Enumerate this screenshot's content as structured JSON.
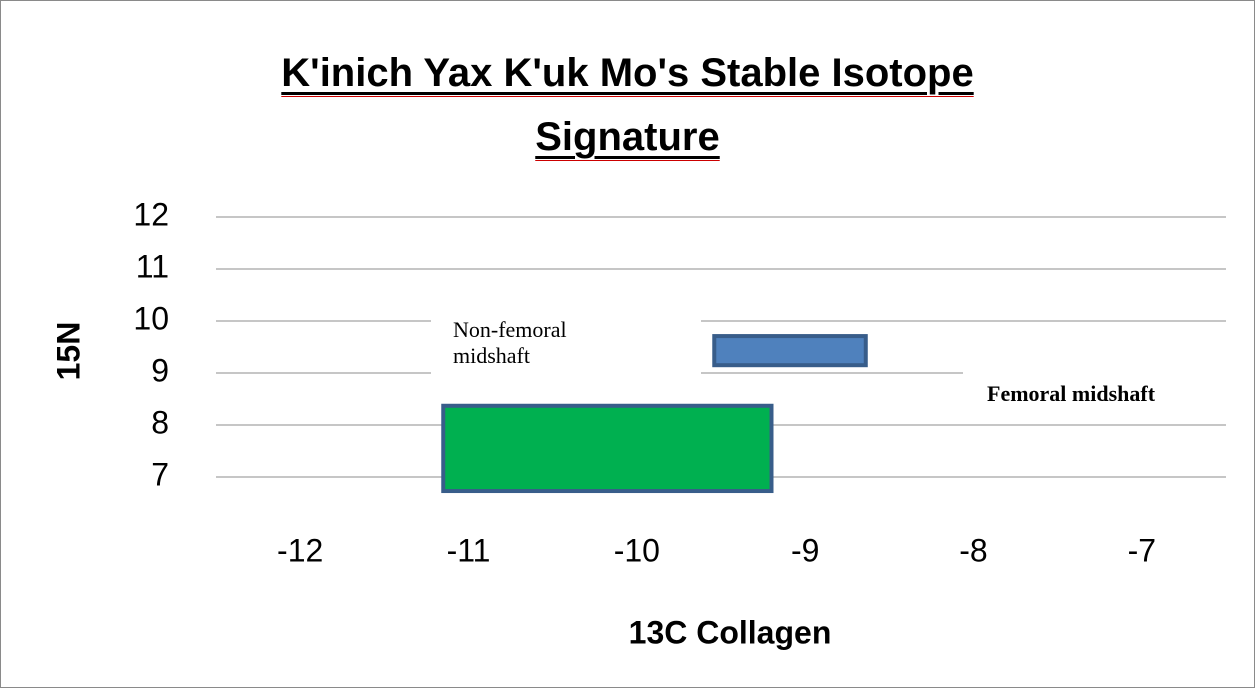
{
  "chart_data": {
    "type": "range-box",
    "title": [
      "K'inich Yax K'uk Mo's Stable Isotope",
      "Signature"
    ],
    "x_label": "13C Collagen",
    "y_label": "15N",
    "xlim": [
      -12.5,
      -6.5
    ],
    "xticks": [
      -12,
      -11,
      -10,
      -9,
      -8,
      -7
    ],
    "ylim": [
      6.5,
      12
    ],
    "yticks": [
      7,
      8,
      9,
      10,
      11,
      12
    ],
    "grid": true,
    "series": [
      {
        "name": "Non-femoral midshaft",
        "color": "#00b050",
        "xmin": -11.15,
        "xmax": -9.2,
        "ymin": 6.73,
        "ymax": 8.37
      },
      {
        "name": "Femoral midshaft",
        "color": "#4f81bd",
        "xmin": -9.54,
        "xmax": -8.64,
        "ymin": 9.15,
        "ymax": 9.71
      }
    ]
  }
}
